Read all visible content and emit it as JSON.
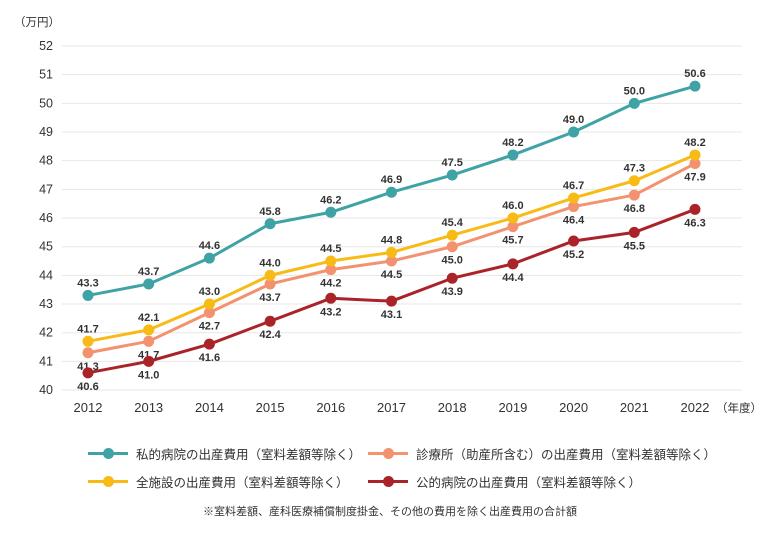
{
  "chart_data": {
    "type": "line",
    "title": "",
    "unit_label": "（万円）",
    "x_axis_suffix": "（年度）",
    "categories": [
      "2012",
      "2013",
      "2014",
      "2015",
      "2016",
      "2017",
      "2018",
      "2019",
      "2020",
      "2021",
      "2022"
    ],
    "ylim": [
      40,
      52
    ],
    "ytick_step": 1,
    "grid": true,
    "legend_position": "bottom",
    "series": [
      {
        "name": "私的病院の出産費用（室料差額等除く）",
        "color": "#3FA3A6",
        "value_label_position": "above",
        "values": [
          43.3,
          43.7,
          44.6,
          45.8,
          46.2,
          46.9,
          47.5,
          48.2,
          49.0,
          50.0,
          50.6
        ]
      },
      {
        "name": "診療所（助産所含む）の出産費用（室料差額等除く）",
        "color": "#F2926F",
        "value_label_position": "below",
        "values": [
          41.3,
          41.7,
          42.7,
          43.7,
          44.2,
          44.5,
          45.0,
          45.7,
          46.4,
          46.8,
          47.9
        ]
      },
      {
        "name": "全施設の出産費用（室料差額等除く）",
        "color": "#F8BB16",
        "value_label_position": "above",
        "values": [
          41.7,
          42.1,
          43.0,
          44.0,
          44.5,
          44.8,
          45.4,
          46.0,
          46.7,
          47.3,
          48.2
        ]
      },
      {
        "name": "公的病院の出産費用（室料差額等除く）",
        "color": "#AA2328",
        "value_label_position": "below",
        "values": [
          40.6,
          41.0,
          41.6,
          42.4,
          43.2,
          43.1,
          43.9,
          44.4,
          45.2,
          45.5,
          46.3
        ]
      }
    ],
    "legend_row_major_series_indices": [
      0,
      1,
      2,
      3
    ],
    "footnote": "※室料差額、産科医療補償制度掛金、その他の費用を除く出産費用の合計額",
    "colors": {
      "grid": "#E7E7E7",
      "axis_text": "#333333",
      "value_label_text": "#333333"
    }
  }
}
